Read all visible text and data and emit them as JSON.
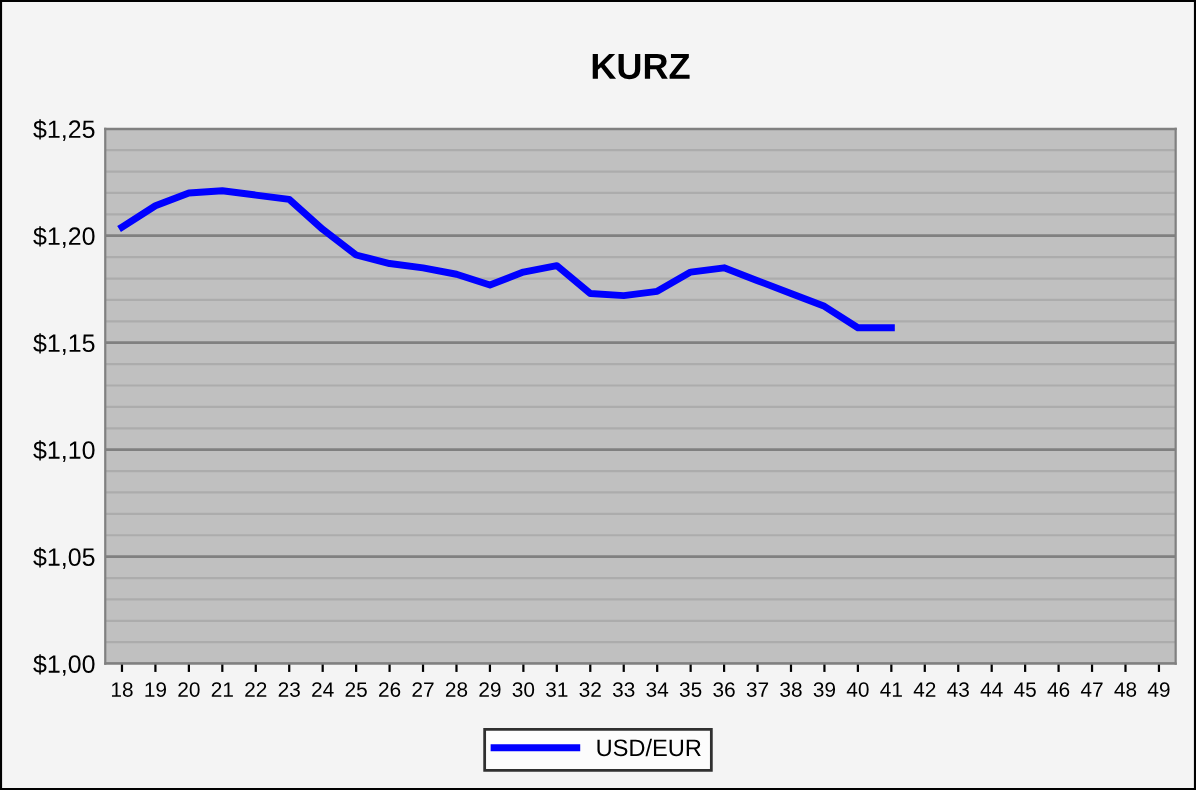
{
  "chart_data": {
    "type": "line",
    "title": "KURZ",
    "categories": [
      "18",
      "19",
      "20",
      "21",
      "22",
      "23",
      "24",
      "25",
      "26",
      "27",
      "28",
      "29",
      "30",
      "31",
      "32",
      "33",
      "34",
      "35",
      "36",
      "37",
      "38",
      "39",
      "40",
      "41",
      "42",
      "43",
      "44",
      "45",
      "46",
      "47",
      "48",
      "49"
    ],
    "series": [
      {
        "name": "USD/EUR",
        "color": "#0000ff",
        "values": [
          1.204,
          1.214,
          1.22,
          1.221,
          1.219,
          1.217,
          1.203,
          1.191,
          1.187,
          1.185,
          1.182,
          1.177,
          1.183,
          1.186,
          1.173,
          1.172,
          1.174,
          1.183,
          1.185,
          1.179,
          1.173,
          1.167,
          1.157,
          1.157,
          null,
          null,
          null,
          null,
          null,
          null,
          null,
          null
        ]
      }
    ],
    "ylim": [
      1.0,
      1.25
    ],
    "yticks": [
      {
        "value": 1.0,
        "label": "$1,00"
      },
      {
        "value": 1.01,
        "label": null
      },
      {
        "value": 1.02,
        "label": null
      },
      {
        "value": 1.03,
        "label": null
      },
      {
        "value": 1.04,
        "label": null
      },
      {
        "value": 1.05,
        "label": "$1,05"
      },
      {
        "value": 1.06,
        "label": null
      },
      {
        "value": 1.07,
        "label": null
      },
      {
        "value": 1.08,
        "label": null
      },
      {
        "value": 1.09,
        "label": null
      },
      {
        "value": 1.1,
        "label": "$1,10"
      },
      {
        "value": 1.11,
        "label": null
      },
      {
        "value": 1.12,
        "label": null
      },
      {
        "value": 1.13,
        "label": null
      },
      {
        "value": 1.14,
        "label": null
      },
      {
        "value": 1.15,
        "label": "$1,15"
      },
      {
        "value": 1.16,
        "label": null
      },
      {
        "value": 1.17,
        "label": null
      },
      {
        "value": 1.18,
        "label": null
      },
      {
        "value": 1.19,
        "label": null
      },
      {
        "value": 1.2,
        "label": "$1,20"
      },
      {
        "value": 1.21,
        "label": null
      },
      {
        "value": 1.22,
        "label": null
      },
      {
        "value": 1.23,
        "label": null
      },
      {
        "value": 1.24,
        "label": null
      },
      {
        "value": 1.25,
        "label": "$1,25"
      }
    ],
    "grid": "y",
    "legend": "bottom",
    "marker": "none",
    "line_style": "solid"
  }
}
